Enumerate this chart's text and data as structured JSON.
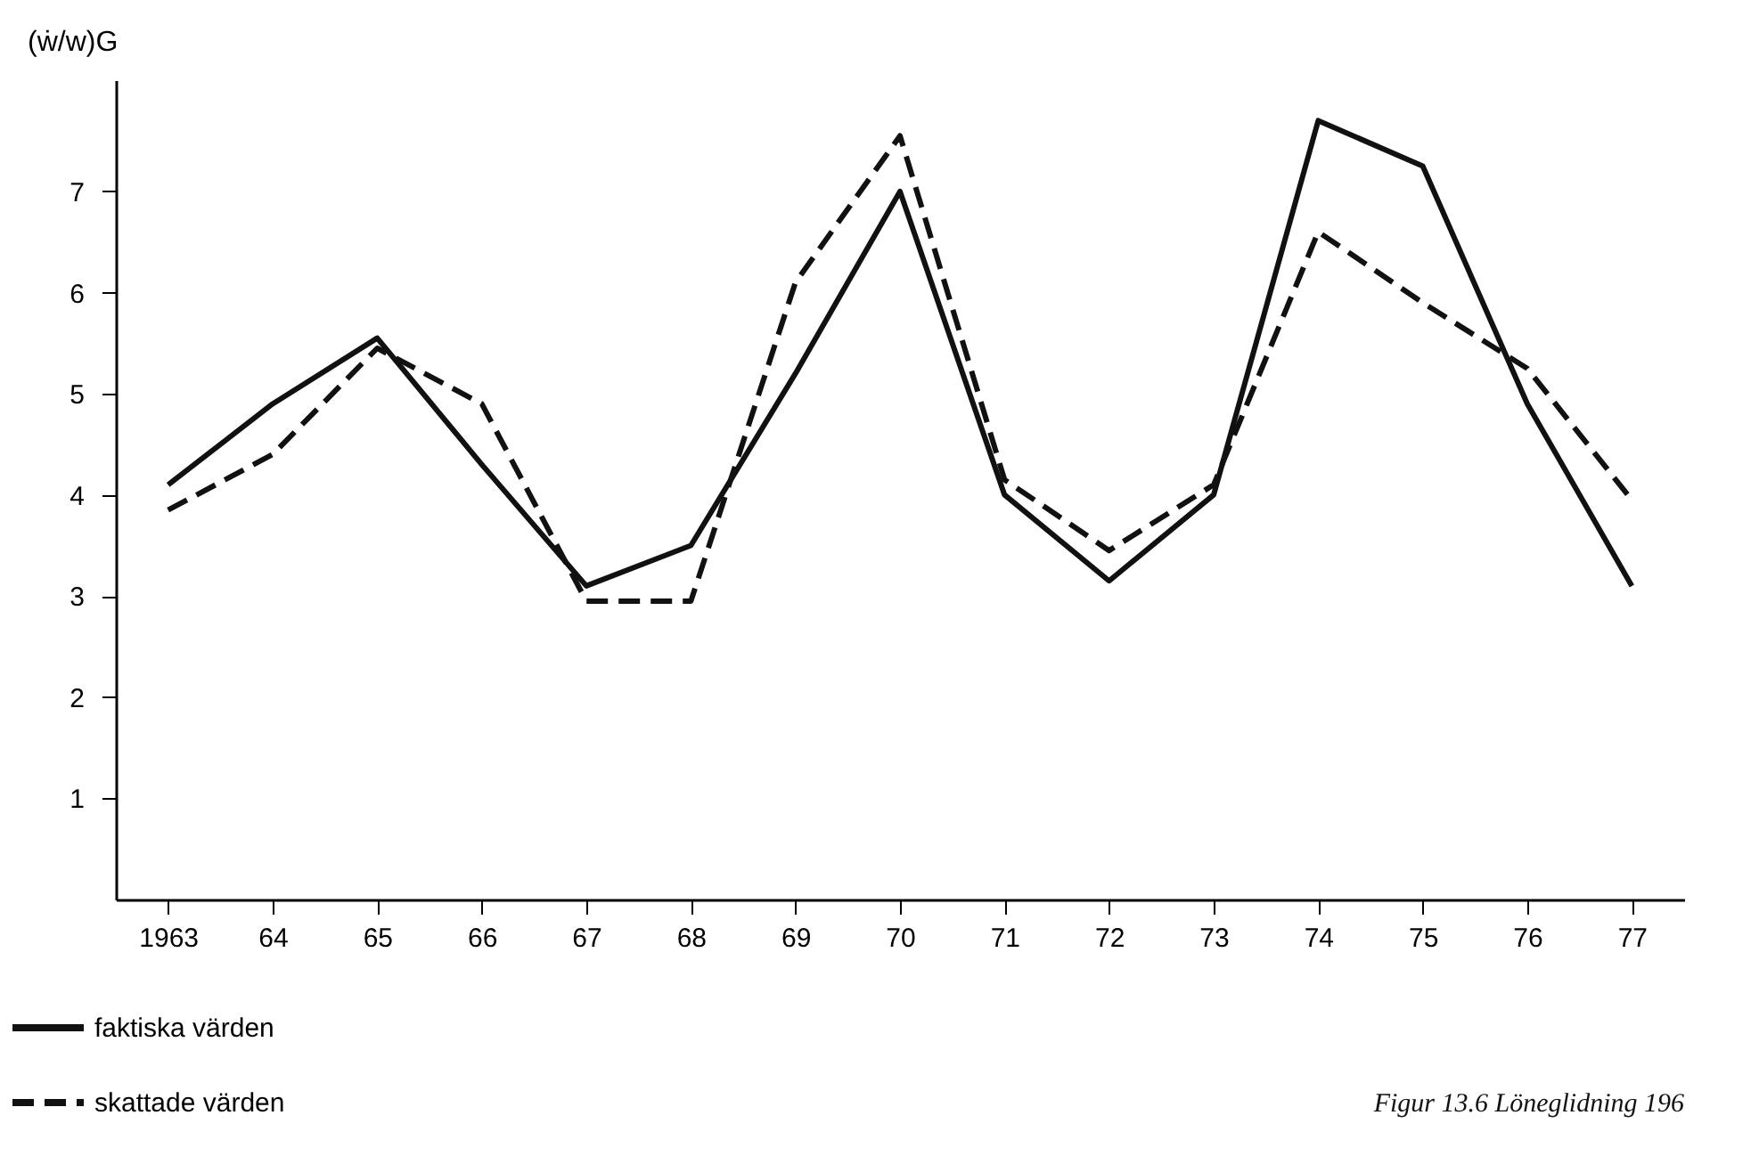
{
  "chart_data": {
    "type": "line",
    "ylabel": "(ẇ/w)G",
    "categories": [
      "1963",
      "64",
      "65",
      "66",
      "67",
      "68",
      "69",
      "70",
      "71",
      "72",
      "73",
      "74",
      "75",
      "76",
      "77"
    ],
    "ylim": [
      0,
      8.1
    ],
    "yticks": [
      1,
      2,
      3,
      4,
      5,
      6,
      7
    ],
    "grid": false,
    "legend": "bottom left",
    "marker": "none",
    "series": [
      {
        "name": "faktiska värden",
        "color": "#111111",
        "line_style": "solid",
        "values": [
          4.1,
          4.9,
          5.55,
          4.3,
          3.1,
          3.5,
          5.2,
          7.0,
          4.0,
          3.15,
          4.0,
          7.7,
          7.25,
          4.9,
          3.1
        ]
      },
      {
        "name": "skattade värden",
        "color": "#111111",
        "line_style": "dashed",
        "values": [
          3.85,
          4.4,
          5.45,
          4.9,
          2.95,
          2.95,
          6.1,
          7.55,
          4.15,
          3.45,
          4.1,
          6.6,
          5.9,
          5.25,
          3.95
        ]
      }
    ],
    "annotations": [
      "Figur 13.6 Löneglidning 196"
    ]
  }
}
